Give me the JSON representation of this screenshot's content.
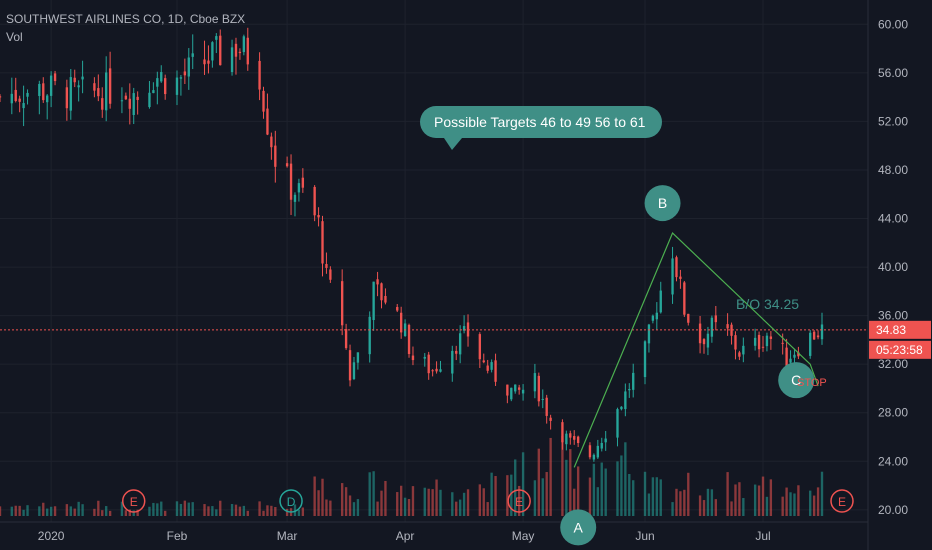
{
  "header": {
    "symbol_line": "SOUTHWEST AIRLINES CO, 1D, Cboe BZX",
    "volume_label": "Vol"
  },
  "colors": {
    "background": "#131722",
    "up": "#26a69a",
    "down": "#ef5350",
    "grid": "#1e222d",
    "axis_text": "#b2b5be",
    "pattern_line": "#4caf50",
    "callout": "#3f8f86",
    "price_line": "#ef5350",
    "stop_text": "#ef5350"
  },
  "chart_data": {
    "type": "candlestick",
    "title": "SOUTHWEST AIRLINES CO, 1D, Cboe BZX",
    "y_ticks": [
      "60.00",
      "56.00",
      "52.00",
      "48.00",
      "44.00",
      "40.00",
      "36.00",
      "32.00",
      "28.00",
      "24.00",
      "20.00"
    ],
    "ylim": [
      19.0,
      62.0
    ],
    "x_ticks": [
      "2020",
      "Feb",
      "Mar",
      "Apr",
      "May",
      "Jun",
      "Jul"
    ],
    "x_range": [
      "2019-12-20",
      "2020-07-16"
    ],
    "x_tick_dates": [
      "2020-01-02",
      "2020-02-03",
      "2020-03-02",
      "2020-04-01",
      "2020-05-01",
      "2020-06-01",
      "2020-07-01"
    ],
    "last_price": "34.83",
    "countdown": "05:23:58",
    "last_price_value": 34.83,
    "close_keypoints": [
      [
        "2019-12-20",
        54.0
      ],
      [
        "2019-12-26",
        54.5
      ],
      [
        "2020-01-02",
        54.6
      ],
      [
        "2020-01-08",
        54.2
      ],
      [
        "2020-01-14",
        54.4
      ],
      [
        "2020-01-20",
        54.8
      ],
      [
        "2020-01-24",
        54.2
      ],
      [
        "2020-01-28",
        55.8
      ],
      [
        "2020-02-03",
        55.3
      ],
      [
        "2020-02-07",
        56.3
      ],
      [
        "2020-02-12",
        57.3
      ],
      [
        "2020-02-18",
        58.2
      ],
      [
        "2020-02-21",
        57.5
      ],
      [
        "2020-02-24",
        56.0
      ],
      [
        "2020-02-26",
        52.0
      ],
      [
        "2020-02-28",
        49.0
      ],
      [
        "2020-03-03",
        46.5
      ],
      [
        "2020-03-06",
        46.0
      ],
      [
        "2020-03-10",
        43.5
      ],
      [
        "2020-03-12",
        39.0
      ],
      [
        "2020-03-16",
        35.5
      ],
      [
        "2020-03-18",
        31.0
      ],
      [
        "2020-03-20",
        33.0
      ],
      [
        "2020-03-24",
        38.0
      ],
      [
        "2020-03-27",
        37.5
      ],
      [
        "2020-03-31",
        35.5
      ],
      [
        "2020-04-03",
        32.5
      ],
      [
        "2020-04-08",
        31.5
      ],
      [
        "2020-04-13",
        33.5
      ],
      [
        "2020-04-17",
        34.5
      ],
      [
        "2020-04-21",
        32.0
      ],
      [
        "2020-04-24",
        31.0
      ],
      [
        "2020-04-29",
        29.5
      ],
      [
        "2020-05-04",
        30.5
      ],
      [
        "2020-05-08",
        27.5
      ],
      [
        "2020-05-13",
        25.5
      ],
      [
        "2020-05-18",
        24.5
      ],
      [
        "2020-05-22",
        26.5
      ],
      [
        "2020-05-27",
        29.5
      ],
      [
        "2020-06-01",
        33.0
      ],
      [
        "2020-06-04",
        37.0
      ],
      [
        "2020-06-08",
        41.5
      ],
      [
        "2020-06-11",
        36.5
      ],
      [
        "2020-06-15",
        34.0
      ],
      [
        "2020-06-18",
        35.0
      ],
      [
        "2020-06-22",
        34.5
      ],
      [
        "2020-06-25",
        33.0
      ],
      [
        "2020-06-29",
        33.5
      ],
      [
        "2020-07-02",
        34.5
      ],
      [
        "2020-07-07",
        32.5
      ],
      [
        "2020-07-10",
        33.5
      ],
      [
        "2020-07-14",
        34.5
      ],
      [
        "2020-07-16",
        34.83
      ]
    ],
    "volume_ticks": [],
    "annotations": {
      "targets_label": "Possible Targets 46 to 49      56 to 61",
      "point_a": "A",
      "point_b": "B",
      "point_c": "C",
      "breakout": "B/O 34.25",
      "stop": "STOP",
      "events": [
        "E",
        "D",
        "E",
        "E"
      ]
    },
    "pattern": {
      "a": [
        "2020-05-14",
        23.5
      ],
      "b": [
        "2020-06-08",
        42.8
      ],
      "c": [
        "2020-07-13",
        32.0
      ],
      "c_line_end": [
        "2020-07-15",
        30.2
      ]
    },
    "event_dates": [
      "2020-01-23",
      "2020-03-03",
      "2020-04-30",
      "2020-07-23"
    ]
  }
}
